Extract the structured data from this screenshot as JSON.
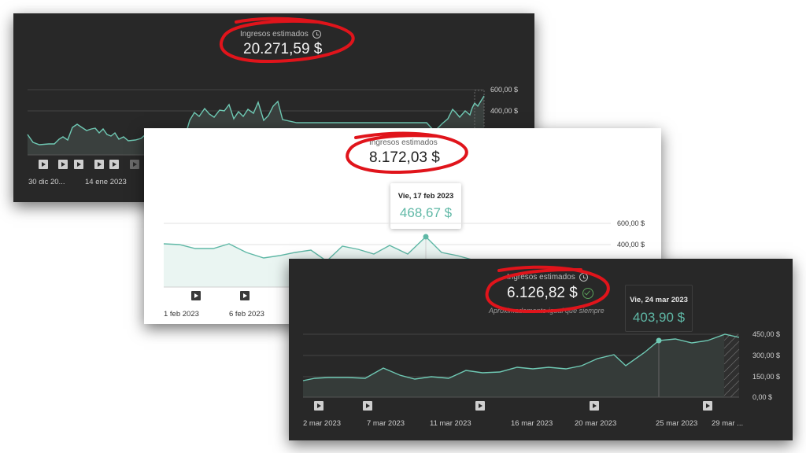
{
  "panel_top": {
    "metric_label": "Ingresos estimados",
    "metric_value": "20.271,59 $",
    "y_ticks": [
      "600,00 $",
      "400,00 $"
    ],
    "x_labels": [
      "30 dic 20...",
      "14 ene 2023"
    ],
    "theme": "dark",
    "line_color": "#6fc9b4"
  },
  "panel_middle": {
    "metric_label": "Ingresos estimados",
    "metric_value": "8.172,03 $",
    "tooltip": {
      "date": "Vie, 17 feb 2023",
      "value": "468,67 $"
    },
    "y_ticks": [
      "600,00 $",
      "400,00 $"
    ],
    "x_labels": [
      "1 feb 2023",
      "6 feb 2023"
    ],
    "theme": "light",
    "line_color": "#5fb8a6"
  },
  "panel_bottom": {
    "metric_label": "Ingresos estimados",
    "metric_value": "6.126,82 $",
    "status_text": "Aproximadamente igual que siempre",
    "tooltip": {
      "date": "Vie, 24 mar 2023",
      "value": "403,90 $"
    },
    "y_ticks": [
      "450,00 $",
      "300,00 $",
      "150,00 $",
      "0,00 $"
    ],
    "x_labels": [
      "2 mar 2023",
      "7 mar 2023",
      "11 mar 2023",
      "16 mar 2023",
      "20 mar 2023",
      "25 mar 2023",
      "29 mar ..."
    ],
    "theme": "dark",
    "line_color": "#6fc9b4"
  },
  "annotation_color": "#e0141b"
}
